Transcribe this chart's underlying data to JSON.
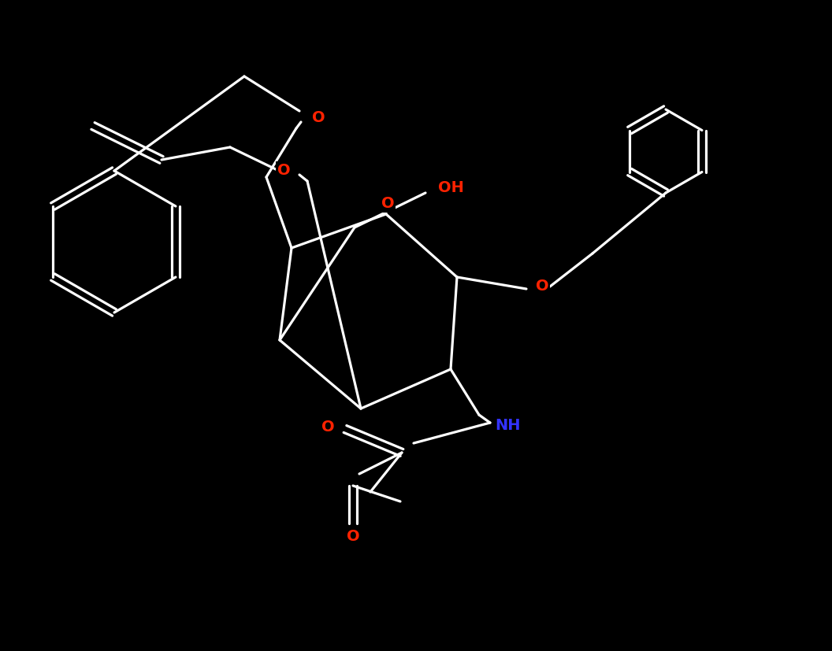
{
  "bg": "#000000",
  "bond_color": "#ffffff",
  "O_color": "#ff2200",
  "N_color": "#3333ff",
  "lw": 2.3,
  "fig_w": 10.56,
  "fig_h": 8.27,
  "dpi": 100,
  "ring_O_label": "O",
  "OH_label": "OH",
  "NH_label": "NH",
  "amide_O_label": "O",
  "carbonyl_O_label": "O",
  "allyl_O_label": "O",
  "C6O_label": "O"
}
